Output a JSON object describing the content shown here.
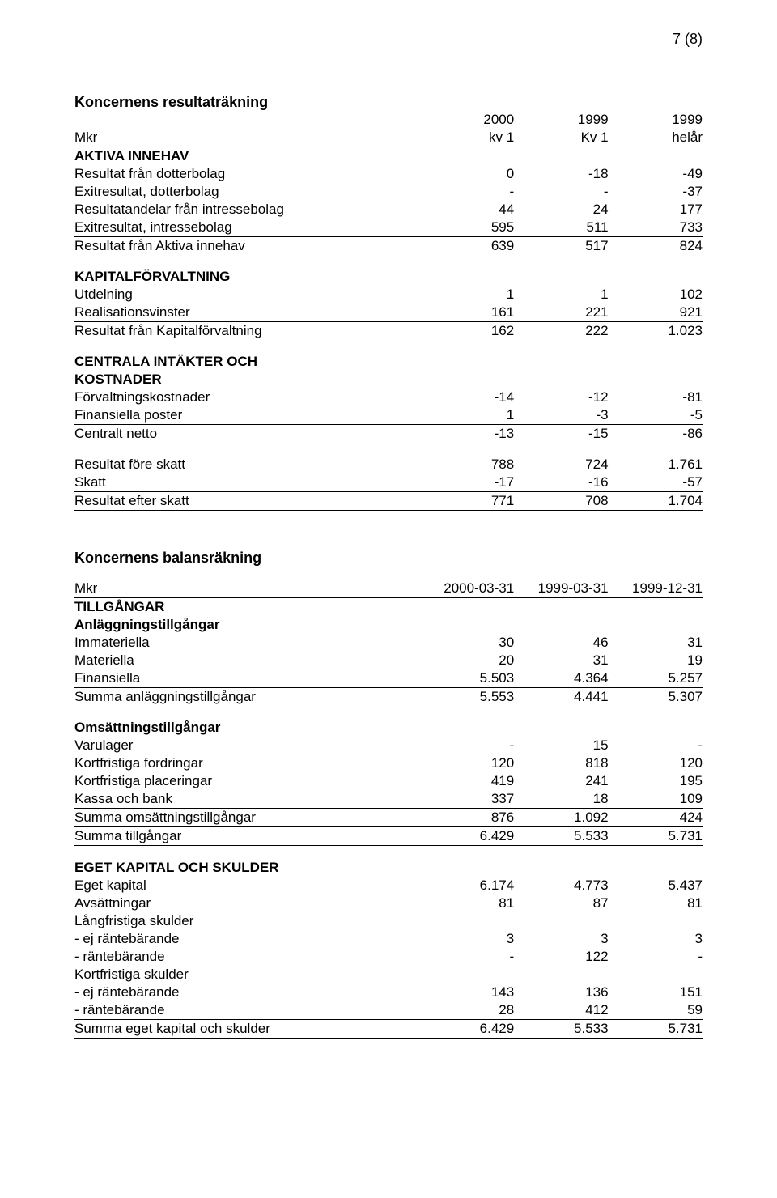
{
  "page_number": "7 (8)",
  "income": {
    "title": "Koncernens resultaträkning",
    "head": {
      "c1": "2000",
      "c2": "1999",
      "c3": "1999"
    },
    "sub": {
      "label": "Mkr",
      "c1": "kv 1",
      "c2": "Kv 1",
      "c3": "helår"
    },
    "aktiva_header": "AKTIVA INNEHAV",
    "aktiva": [
      {
        "label": "Resultat från dotterbolag",
        "c1": "0",
        "c2": "-18",
        "c3": "-49"
      },
      {
        "label": "Exitresultat, dotterbolag",
        "c1": "-",
        "c2": "-",
        "c3": "-37"
      },
      {
        "label": "Resultatandelar från intressebolag",
        "c1": "44",
        "c2": "24",
        "c3": "177"
      },
      {
        "label": "Exitresultat, intressebolag",
        "c1": "595",
        "c2": "511",
        "c3": "733"
      }
    ],
    "aktiva_sum": {
      "label": "Resultat från Aktiva innehav",
      "c1": "639",
      "c2": "517",
      "c3": "824"
    },
    "kapital_header": "KAPITALFÖRVALTNING",
    "kapital": [
      {
        "label": "Utdelning",
        "c1": "1",
        "c2": "1",
        "c3": "102"
      },
      {
        "label": "Realisationsvinster",
        "c1": "161",
        "c2": "221",
        "c3": "921"
      }
    ],
    "kapital_sum": {
      "label": "Resultat från Kapitalförvaltning",
      "c1": "162",
      "c2": "222",
      "c3": "1.023"
    },
    "central_header1": "CENTRALA INTÄKTER OCH",
    "central_header2": "KOSTNADER",
    "central": [
      {
        "label": "Förvaltningskostnader",
        "c1": "-14",
        "c2": "-12",
        "c3": "-81"
      },
      {
        "label": "Finansiella poster",
        "c1": "1",
        "c2": "-3",
        "c3": "-5"
      }
    ],
    "central_sum": {
      "label": "Centralt netto",
      "c1": "-13",
      "c2": "-15",
      "c3": "-86"
    },
    "before_tax": {
      "label": "Resultat före skatt",
      "c1": "788",
      "c2": "724",
      "c3": "1.761"
    },
    "tax": {
      "label": "Skatt",
      "c1": "-17",
      "c2": "-16",
      "c3": "-57"
    },
    "after_tax": {
      "label": "Resultat efter skatt",
      "c1": "771",
      "c2": "708",
      "c3": "1.704"
    }
  },
  "balance": {
    "title": "Koncernens balansräkning",
    "head": {
      "label": "Mkr",
      "c1": "2000-03-31",
      "c2": "1999-03-31",
      "c3": "1999-12-31"
    },
    "tillgangar_header": "TILLGÅNGAR",
    "anl_header": "Anläggningstillgångar",
    "anl": [
      {
        "label": "Immateriella",
        "c1": "30",
        "c2": "46",
        "c3": "31"
      },
      {
        "label": "Materiella",
        "c1": "20",
        "c2": "31",
        "c3": "19"
      },
      {
        "label": "Finansiella",
        "c1": "5.503",
        "c2": "4.364",
        "c3": "5.257"
      }
    ],
    "anl_sum": {
      "label": "Summa anläggningstillgångar",
      "c1": "5.553",
      "c2": "4.441",
      "c3": "5.307"
    },
    "oms_header": "Omsättningstillgångar",
    "oms": [
      {
        "label": "Varulager",
        "c1": "-",
        "c2": "15",
        "c3": "-"
      },
      {
        "label": "Kortfristiga fordringar",
        "c1": "120",
        "c2": "818",
        "c3": "120"
      },
      {
        "label": "Kortfristiga placeringar",
        "c1": "419",
        "c2": "241",
        "c3": "195"
      },
      {
        "label": "Kassa och bank",
        "c1": "337",
        "c2": "18",
        "c3": "109"
      }
    ],
    "oms_sum": {
      "label": "Summa omsättningstillgångar",
      "c1": "876",
      "c2": "1.092",
      "c3": "424"
    },
    "tillg_sum": {
      "label": "Summa tillgångar",
      "c1": "6.429",
      "c2": "5.533",
      "c3": "5.731"
    },
    "ek_header": "EGET KAPITAL OCH SKULDER",
    "ek": [
      {
        "label": "Eget kapital",
        "c1": "6.174",
        "c2": "4.773",
        "c3": "5.437"
      },
      {
        "label": "Avsättningar",
        "c1": "81",
        "c2": "87",
        "c3": "81"
      }
    ],
    "lang_header": "Långfristiga skulder",
    "lang": [
      {
        "label": "- ej räntebärande",
        "c1": "3",
        "c2": "3",
        "c3": "3"
      },
      {
        "label": "- räntebärande",
        "c1": "-",
        "c2": "122",
        "c3": "-"
      }
    ],
    "kort_header": "Kortfristiga skulder",
    "kort": [
      {
        "label": "- ej räntebärande",
        "c1": "143",
        "c2": "136",
        "c3": "151"
      },
      {
        "label": "- räntebärande",
        "c1": "28",
        "c2": "412",
        "c3": "59"
      }
    ],
    "ek_sum": {
      "label": "Summa eget kapital och skulder",
      "c1": "6.429",
      "c2": "5.533",
      "c3": "5.731"
    }
  }
}
